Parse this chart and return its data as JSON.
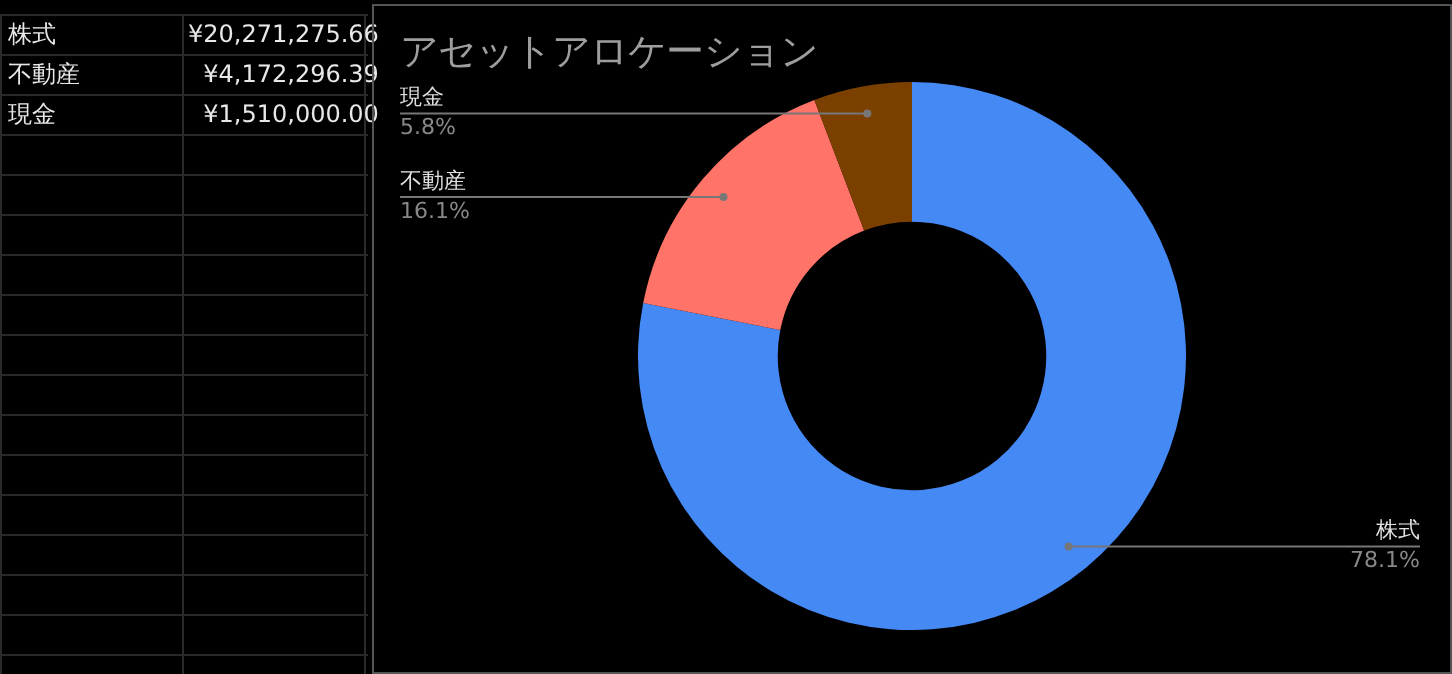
{
  "chart_data": {
    "type": "donut",
    "title": "アセットアロケーション",
    "categories": [
      "株式",
      "不動産",
      "現金"
    ],
    "values": [
      78.1,
      16.1,
      5.8
    ],
    "colors": [
      "#4589f5",
      "#ff7369",
      "#7b4000"
    ],
    "value_labels": [
      "78.1%",
      "16.1%",
      "5.8%"
    ],
    "annotations": [
      "¥20,271,275.66",
      "¥4,172,296.39",
      "¥1,510,000.00"
    ],
    "legend": false
  }
}
